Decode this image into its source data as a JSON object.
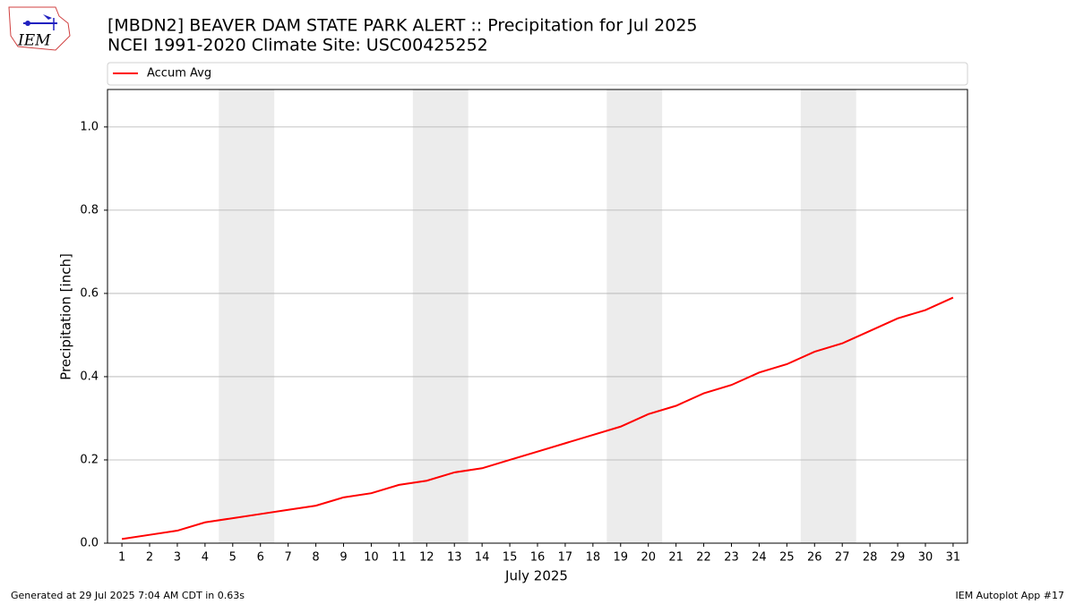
{
  "logo": "IEM",
  "footer": {
    "left": "Generated at 29 Jul 2025 7:04 AM CDT in 0.63s",
    "right": "IEM Autoplot App #17"
  },
  "chart_data": {
    "type": "line",
    "title": "[MBDN2] BEAVER DAM STATE PARK ALERT :: Precipitation for Jul 2025",
    "subtitle": "NCEI 1991-2020 Climate Site: USC00425252",
    "x_label": "July 2025",
    "y_label": "Precipitation [inch]",
    "x": [
      1,
      2,
      3,
      4,
      5,
      6,
      7,
      8,
      9,
      10,
      11,
      12,
      13,
      14,
      15,
      16,
      17,
      18,
      19,
      20,
      21,
      22,
      23,
      24,
      25,
      26,
      27,
      28,
      29,
      30,
      31
    ],
    "series": [
      {
        "name": "Accum Avg",
        "color": "#ff0000",
        "values": [
          0.01,
          0.02,
          0.03,
          0.05,
          0.06,
          0.07,
          0.08,
          0.09,
          0.11,
          0.12,
          0.14,
          0.15,
          0.17,
          0.18,
          0.2,
          0.22,
          0.24,
          0.26,
          0.28,
          0.31,
          0.33,
          0.36,
          0.38,
          0.41,
          0.43,
          0.46,
          0.48,
          0.51,
          0.54,
          0.56,
          0.59
        ]
      }
    ],
    "shaded_ranges": [
      [
        4.5,
        6.5
      ],
      [
        11.5,
        13.5
      ],
      [
        18.5,
        20.5
      ],
      [
        25.5,
        27.5
      ]
    ],
    "shade_color": "#ececec",
    "xlim": [
      0.48,
      31.52
    ],
    "ylim": [
      0,
      1.09
    ],
    "xticks": [
      1,
      2,
      3,
      4,
      5,
      6,
      7,
      8,
      9,
      10,
      11,
      12,
      13,
      14,
      15,
      16,
      17,
      18,
      19,
      20,
      21,
      22,
      23,
      24,
      25,
      26,
      27,
      28,
      29,
      30,
      31
    ],
    "yticks": [
      {
        "value": 0,
        "label": "0.0"
      },
      0.2,
      0.4,
      0.6,
      0.8,
      {
        "value": 1,
        "label": "1.0"
      }
    ],
    "grid": "y",
    "legend": "top"
  }
}
